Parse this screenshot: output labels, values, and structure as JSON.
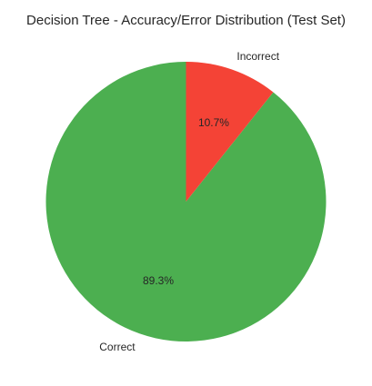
{
  "chart_data": {
    "type": "pie",
    "title": "Decision Tree - Accuracy/Error Distribution (Test Set)",
    "labels": [
      "Correct",
      "Incorrect"
    ],
    "values": [
      89.3,
      10.7
    ],
    "percent_labels": [
      "89.3%",
      "10.7%"
    ],
    "colors": [
      "#4caf50",
      "#f44336"
    ],
    "start_angle_deg": 90,
    "direction": "counterclockwise"
  }
}
